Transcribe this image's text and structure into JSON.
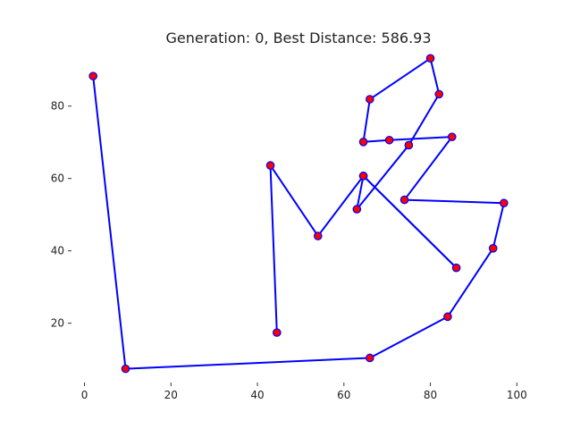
{
  "chart_data": {
    "type": "line",
    "title": "Generation: 0, Best Distance: 586.93",
    "xlabel": "",
    "ylabel": "",
    "xlim": [
      -3,
      102
    ],
    "ylim": [
      3.6,
      95
    ],
    "x_ticks": [
      0,
      20,
      40,
      60,
      80,
      100
    ],
    "y_ticks": [
      20,
      40,
      60,
      80
    ],
    "grid": false,
    "colors": {
      "route": "#0000ff",
      "city_fill": "#ff0000",
      "city_edge": "#0000ff"
    },
    "series": [
      {
        "x": [
          2,
          9.5,
          66,
          84,
          94.5,
          97,
          74,
          85,
          70.5,
          64.5,
          66,
          80,
          82,
          75,
          63,
          64.5,
          86,
          64.5,
          54,
          43,
          44.5
        ],
        "y": [
          88.3,
          7.4,
          10.4,
          21.8,
          40.7,
          53.2,
          54.1,
          71.5,
          70.6,
          70.1,
          81.9,
          93.2,
          83.3,
          69.2,
          51.5,
          60.7,
          35.3,
          60.7,
          44.1,
          63.6,
          17.4
        ]
      }
    ]
  }
}
